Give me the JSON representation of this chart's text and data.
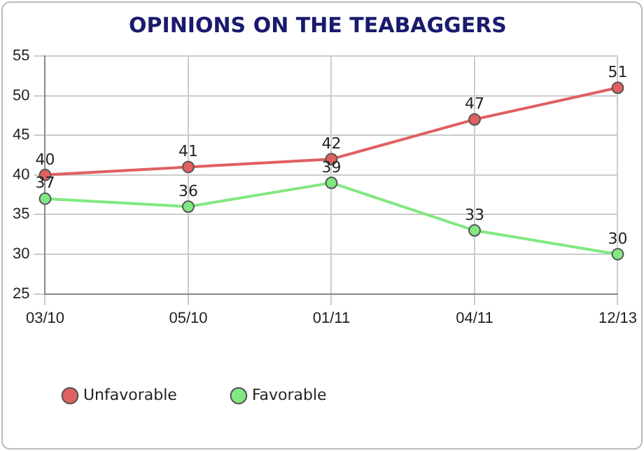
{
  "chart_data": {
    "type": "line",
    "title": "OPINIONS ON THE TEABAGGERS",
    "categories": [
      "03/10",
      "05/10",
      "01/11",
      "04/11",
      "12/13"
    ],
    "series": [
      {
        "name": "Unfavorable",
        "color": "#e06060",
        "values": [
          40,
          41,
          42,
          47,
          51
        ]
      },
      {
        "name": "Favorable",
        "color": "#80e880",
        "values": [
          37,
          36,
          39,
          33,
          30
        ]
      }
    ],
    "ylim": [
      25,
      55
    ],
    "yticks": [
      25,
      30,
      35,
      40,
      45,
      50,
      55
    ],
    "grid": true,
    "legend": "bottom left",
    "marker": "circle",
    "line_style": "solid",
    "data_labels": true
  }
}
